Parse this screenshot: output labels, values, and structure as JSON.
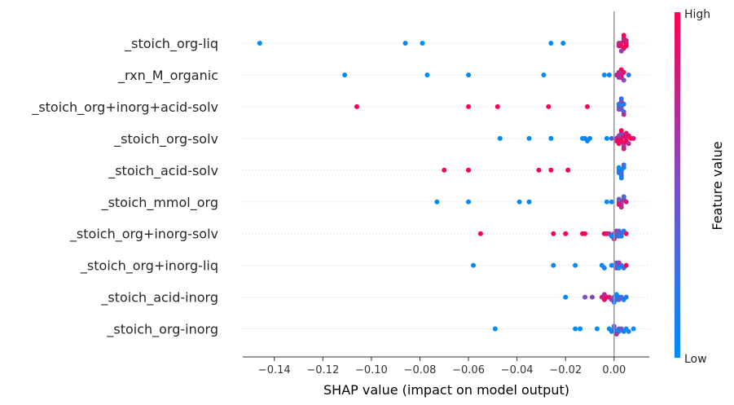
{
  "chart_data": {
    "type": "scatter",
    "subtype": "shap-beeswarm",
    "xlabel": "SHAP value (impact on model output)",
    "xlim": [
      -0.153,
      0.0145
    ],
    "xticks": [
      -0.14,
      -0.12,
      -0.1,
      -0.08,
      -0.06,
      -0.04,
      -0.02,
      0.0
    ],
    "xtick_labels": [
      "−0.14",
      "−0.12",
      "−0.10",
      "−0.08",
      "−0.06",
      "−0.04",
      "−0.02",
      "0.00"
    ],
    "colorbar": {
      "title": "Feature value",
      "high_label": "High",
      "low_label": "Low",
      "low_color": "#008bfb",
      "high_color": "#ff0052"
    },
    "features": [
      {
        "name": "_stoich_org-liq",
        "points": [
          {
            "x": -0.146,
            "v": 0.0
          },
          {
            "x": -0.086,
            "v": 0.0
          },
          {
            "x": -0.079,
            "v": 0.0
          },
          {
            "x": -0.026,
            "v": 0.0
          },
          {
            "x": -0.021,
            "v": 0.0
          },
          {
            "x": 0.002,
            "v": 0.7
          },
          {
            "x": 0.003,
            "v": 0.8
          },
          {
            "x": 0.003,
            "v": 0.9
          },
          {
            "x": 0.004,
            "v": 0.85
          },
          {
            "x": 0.004,
            "v": 0.95
          },
          {
            "x": 0.005,
            "v": 0.9
          },
          {
            "x": 0.005,
            "v": 1.0
          },
          {
            "x": 0.004,
            "v": 0.75
          },
          {
            "x": 0.003,
            "v": 0.6
          },
          {
            "x": 0.005,
            "v": 0.8
          },
          {
            "x": 0.002,
            "v": 0.9
          },
          {
            "x": 0.004,
            "v": 1.0
          }
        ]
      },
      {
        "name": "_rxn_M_organic",
        "points": [
          {
            "x": -0.111,
            "v": 0.0
          },
          {
            "x": -0.077,
            "v": 0.0
          },
          {
            "x": -0.06,
            "v": 0.0
          },
          {
            "x": -0.029,
            "v": 0.0
          },
          {
            "x": -0.004,
            "v": 0.0
          },
          {
            "x": -0.002,
            "v": 0.05
          },
          {
            "x": 0.001,
            "v": 0.8
          },
          {
            "x": 0.002,
            "v": 0.9
          },
          {
            "x": 0.003,
            "v": 0.7
          },
          {
            "x": 0.003,
            "v": 1.0
          },
          {
            "x": 0.004,
            "v": 0.85
          },
          {
            "x": 0.002,
            "v": 0.6
          },
          {
            "x": 0.004,
            "v": 0.5
          },
          {
            "x": 0.003,
            "v": 0.95
          },
          {
            "x": 0.002,
            "v": 0.75
          },
          {
            "x": 0.006,
            "v": 0.2
          }
        ]
      },
      {
        "name": "_stoich_org+inorg+acid-solv",
        "points": [
          {
            "x": -0.106,
            "v": 1.0
          },
          {
            "x": -0.06,
            "v": 1.0
          },
          {
            "x": -0.048,
            "v": 1.0
          },
          {
            "x": -0.027,
            "v": 1.0
          },
          {
            "x": -0.011,
            "v": 1.0
          },
          {
            "x": 0.002,
            "v": 0.3
          },
          {
            "x": 0.003,
            "v": 0.2
          },
          {
            "x": 0.003,
            "v": 0.4
          },
          {
            "x": 0.004,
            "v": 0.1
          },
          {
            "x": 0.002,
            "v": 0.5
          },
          {
            "x": 0.004,
            "v": 0.3
          },
          {
            "x": 0.003,
            "v": 0.6
          },
          {
            "x": 0.002,
            "v": 0.15
          },
          {
            "x": 0.004,
            "v": 0.7
          },
          {
            "x": 0.003,
            "v": 0.25
          }
        ]
      },
      {
        "name": "_stoich_org-solv",
        "points": [
          {
            "x": -0.047,
            "v": 0.0
          },
          {
            "x": -0.035,
            "v": 0.0
          },
          {
            "x": -0.026,
            "v": 0.0
          },
          {
            "x": -0.013,
            "v": 0.0
          },
          {
            "x": -0.012,
            "v": 0.05
          },
          {
            "x": -0.011,
            "v": 0.0
          },
          {
            "x": -0.01,
            "v": 0.1
          },
          {
            "x": -0.003,
            "v": 0.0
          },
          {
            "x": -0.001,
            "v": 0.3
          },
          {
            "x": 0.001,
            "v": 0.8
          },
          {
            "x": 0.002,
            "v": 0.9
          },
          {
            "x": 0.002,
            "v": 1.0
          },
          {
            "x": 0.003,
            "v": 0.85
          },
          {
            "x": 0.003,
            "v": 0.95
          },
          {
            "x": 0.004,
            "v": 1.0
          },
          {
            "x": 0.004,
            "v": 0.9
          },
          {
            "x": 0.005,
            "v": 0.8
          },
          {
            "x": 0.005,
            "v": 1.0
          },
          {
            "x": 0.006,
            "v": 0.95
          },
          {
            "x": 0.006,
            "v": 0.7
          },
          {
            "x": 0.007,
            "v": 1.0
          },
          {
            "x": 0.008,
            "v": 0.9
          },
          {
            "x": 0.002,
            "v": 0.6
          },
          {
            "x": 0.003,
            "v": 0.5
          },
          {
            "x": 0.004,
            "v": 0.65
          },
          {
            "x": 0.001,
            "v": 0.9
          },
          {
            "x": 0.005,
            "v": 0.85
          },
          {
            "x": 0.003,
            "v": 1.0
          },
          {
            "x": 0.004,
            "v": 0.8
          },
          {
            "x": 0.002,
            "v": 0.95
          }
        ]
      },
      {
        "name": "_stoich_acid-solv",
        "points": [
          {
            "x": -0.07,
            "v": 1.0
          },
          {
            "x": -0.06,
            "v": 1.0
          },
          {
            "x": -0.031,
            "v": 1.0
          },
          {
            "x": -0.026,
            "v": 1.0
          },
          {
            "x": -0.019,
            "v": 1.0
          },
          {
            "x": 0.002,
            "v": 0.1
          },
          {
            "x": 0.003,
            "v": 0.0
          },
          {
            "x": 0.003,
            "v": 0.2
          },
          {
            "x": 0.002,
            "v": 0.15
          },
          {
            "x": 0.004,
            "v": 0.05
          },
          {
            "x": 0.003,
            "v": 0.3
          },
          {
            "x": 0.002,
            "v": 0.0
          },
          {
            "x": 0.004,
            "v": 0.25
          },
          {
            "x": 0.003,
            "v": 0.1
          }
        ]
      },
      {
        "name": "_stoich_mmol_org",
        "points": [
          {
            "x": -0.073,
            "v": 0.0
          },
          {
            "x": -0.06,
            "v": 0.0
          },
          {
            "x": -0.039,
            "v": 0.0
          },
          {
            "x": -0.035,
            "v": 0.0
          },
          {
            "x": -0.003,
            "v": 0.0
          },
          {
            "x": -0.001,
            "v": 0.1
          },
          {
            "x": 0.002,
            "v": 0.7
          },
          {
            "x": 0.003,
            "v": 0.8
          },
          {
            "x": 0.003,
            "v": 0.5
          },
          {
            "x": 0.002,
            "v": 0.9
          },
          {
            "x": 0.004,
            "v": 0.6
          },
          {
            "x": 0.002,
            "v": 0.4
          },
          {
            "x": 0.003,
            "v": 0.75
          },
          {
            "x": 0.005,
            "v": 0.85
          },
          {
            "x": 0.004,
            "v": 0.3
          }
        ]
      },
      {
        "name": "_stoich_org+inorg-solv",
        "points": [
          {
            "x": -0.055,
            "v": 1.0
          },
          {
            "x": -0.025,
            "v": 1.0
          },
          {
            "x": -0.02,
            "v": 1.0
          },
          {
            "x": -0.013,
            "v": 1.0
          },
          {
            "x": -0.012,
            "v": 0.95
          },
          {
            "x": -0.004,
            "v": 1.0
          },
          {
            "x": -0.003,
            "v": 0.9
          },
          {
            "x": -0.002,
            "v": 0.7
          },
          {
            "x": 0.0,
            "v": 0.5
          },
          {
            "x": 0.001,
            "v": 0.3
          },
          {
            "x": 0.002,
            "v": 0.2
          },
          {
            "x": 0.002,
            "v": 0.1
          },
          {
            "x": 0.003,
            "v": 0.4
          },
          {
            "x": 0.003,
            "v": 0.15
          },
          {
            "x": 0.004,
            "v": 0.05
          },
          {
            "x": 0.001,
            "v": 0.6
          },
          {
            "x": 0.005,
            "v": 0.9
          },
          {
            "x": 0.002,
            "v": 0.35
          },
          {
            "x": 0.0,
            "v": 0.8
          },
          {
            "x": -0.001,
            "v": 0.0
          }
        ]
      },
      {
        "name": "_stoich_org+inorg-liq",
        "points": [
          {
            "x": -0.058,
            "v": 0.0
          },
          {
            "x": -0.025,
            "v": 0.0
          },
          {
            "x": -0.016,
            "v": 0.0
          },
          {
            "x": -0.005,
            "v": 0.0
          },
          {
            "x": -0.004,
            "v": 0.1
          },
          {
            "x": -0.001,
            "v": 0.0
          },
          {
            "x": 0.0,
            "v": 0.2
          },
          {
            "x": 0.001,
            "v": 0.5
          },
          {
            "x": 0.002,
            "v": 0.3
          },
          {
            "x": 0.002,
            "v": 0.0
          },
          {
            "x": 0.003,
            "v": 0.15
          },
          {
            "x": 0.001,
            "v": 0.4
          },
          {
            "x": 0.004,
            "v": 0.25
          },
          {
            "x": 0.005,
            "v": 1.0
          },
          {
            "x": 0.002,
            "v": 0.6
          }
        ]
      },
      {
        "name": "_stoich_acid-inorg",
        "points": [
          {
            "x": -0.02,
            "v": 0.0
          },
          {
            "x": -0.012,
            "v": 0.5
          },
          {
            "x": -0.009,
            "v": 0.55
          },
          {
            "x": -0.005,
            "v": 0.8
          },
          {
            "x": -0.004,
            "v": 0.9
          },
          {
            "x": -0.003,
            "v": 1.0
          },
          {
            "x": -0.004,
            "v": 0.75
          },
          {
            "x": -0.002,
            "v": 0.85
          },
          {
            "x": -0.001,
            "v": 0.6
          },
          {
            "x": 0.0,
            "v": 0.3
          },
          {
            "x": 0.001,
            "v": 0.1
          },
          {
            "x": 0.002,
            "v": 0.0
          },
          {
            "x": 0.003,
            "v": 0.2
          },
          {
            "x": 0.004,
            "v": 0.05
          },
          {
            "x": 0.005,
            "v": 0.15
          },
          {
            "x": 0.001,
            "v": 0.0
          },
          {
            "x": 0.002,
            "v": 0.4
          },
          {
            "x": 0.0,
            "v": 0.1
          }
        ]
      },
      {
        "name": "_stoich_org-inorg",
        "points": [
          {
            "x": -0.049,
            "v": 0.0
          },
          {
            "x": -0.016,
            "v": 0.0
          },
          {
            "x": -0.014,
            "v": 0.0
          },
          {
            "x": -0.007,
            "v": 0.0
          },
          {
            "x": -0.002,
            "v": 0.0
          },
          {
            "x": -0.001,
            "v": 0.1
          },
          {
            "x": 0.0,
            "v": 0.2
          },
          {
            "x": 0.001,
            "v": 0.0
          },
          {
            "x": 0.002,
            "v": 0.3
          },
          {
            "x": 0.003,
            "v": 0.5
          },
          {
            "x": 0.004,
            "v": 0.1
          },
          {
            "x": 0.005,
            "v": 0.0
          },
          {
            "x": 0.006,
            "v": 0.05
          },
          {
            "x": 0.008,
            "v": 0.0
          },
          {
            "x": 0.0,
            "v": 0.4
          },
          {
            "x": 0.001,
            "v": 0.7
          },
          {
            "x": 0.002,
            "v": 0.15
          }
        ]
      }
    ]
  }
}
